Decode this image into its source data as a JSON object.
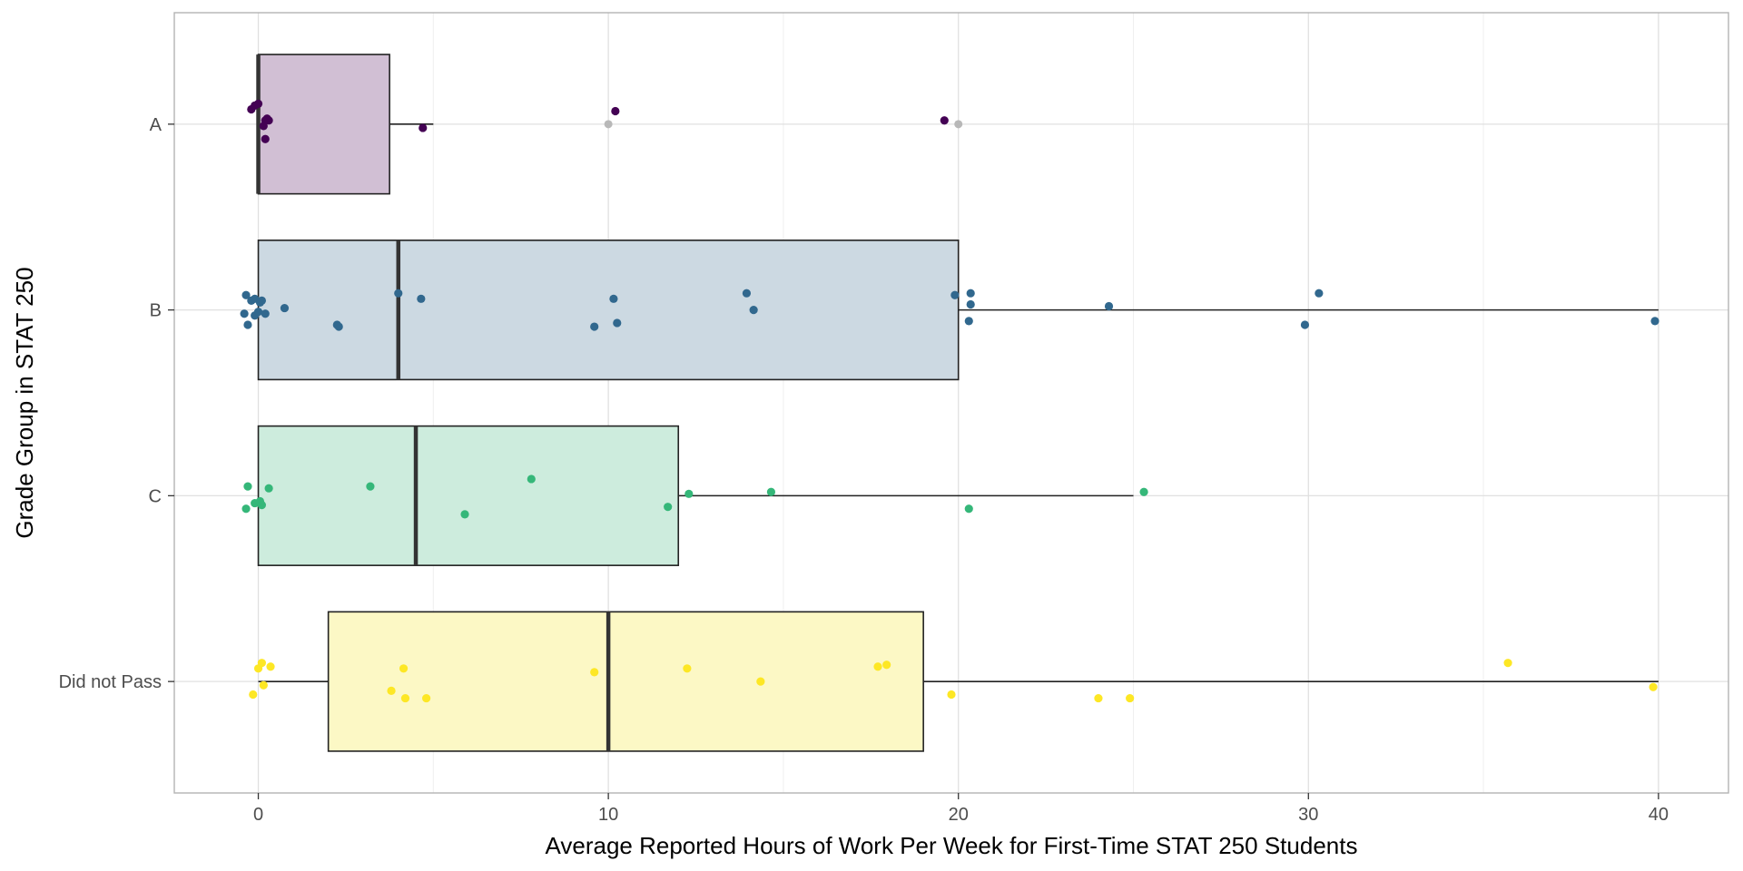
{
  "chart_data": {
    "type": "boxplot",
    "orientation": "horizontal",
    "xlabel": "Average Reported Hours of Work Per Week for First-Time STAT 250 Students",
    "ylabel": "Grade Group in STAT 250",
    "xlim": [
      -2.4,
      42
    ],
    "x_ticks": [
      0,
      10,
      20,
      30,
      40
    ],
    "x_tick_labels": [
      "0",
      "10",
      "20",
      "30",
      "40"
    ],
    "grid": true,
    "legend": "none",
    "categories": [
      "A",
      "B",
      "C",
      "Did not Pass"
    ],
    "series": [
      {
        "category": "A",
        "color": "#440154",
        "box_fill": "#d1bfd4",
        "box": {
          "whisker_low": 0,
          "q1": 0,
          "median": 0,
          "q3": 3.75,
          "whisker_high": 5
        },
        "outliers": [
          10,
          20
        ],
        "points": [
          [
            -0.2,
            0.08
          ],
          [
            0.0,
            0.11
          ],
          [
            -0.1,
            0.1
          ],
          [
            0.2,
            0.02
          ],
          [
            0.25,
            0.03
          ],
          [
            0.15,
            -0.01
          ],
          [
            0.3,
            0.02
          ],
          [
            0.2,
            -0.08
          ],
          [
            4.7,
            -0.02
          ],
          [
            10.2,
            0.07
          ],
          [
            19.6,
            0.02
          ]
        ]
      },
      {
        "category": "B",
        "color": "#31688e",
        "box_fill": "#ccd9e2",
        "box": {
          "whisker_low": 0,
          "q1": 0,
          "median": 4,
          "q3": 20,
          "whisker_high": 40
        },
        "outliers": [],
        "points": [
          [
            -0.35,
            0.08
          ],
          [
            -0.2,
            0.05
          ],
          [
            -0.1,
            0.06
          ],
          [
            0.05,
            0.04
          ],
          [
            0.1,
            0.05
          ],
          [
            -0.4,
            -0.02
          ],
          [
            -0.3,
            -0.08
          ],
          [
            -0.1,
            -0.03
          ],
          [
            0.0,
            -0.01
          ],
          [
            0.2,
            -0.02
          ],
          [
            0.75,
            0.01
          ],
          [
            2.25,
            -0.08
          ],
          [
            2.3,
            -0.09
          ],
          [
            4.0,
            0.09
          ],
          [
            4.65,
            0.06
          ],
          [
            9.6,
            -0.09
          ],
          [
            10.15,
            0.06
          ],
          [
            10.25,
            -0.07
          ],
          [
            13.95,
            0.09
          ],
          [
            14.15,
            0.0
          ],
          [
            19.9,
            0.08
          ],
          [
            20.35,
            0.09
          ],
          [
            20.35,
            0.03
          ],
          [
            20.3,
            -0.06
          ],
          [
            24.3,
            0.02
          ],
          [
            29.9,
            -0.08
          ],
          [
            30.3,
            0.09
          ],
          [
            39.9,
            -0.06
          ]
        ]
      },
      {
        "category": "C",
        "color": "#35b779",
        "box_fill": "#cdecdd",
        "box": {
          "whisker_low": 0,
          "q1": 0,
          "median": 4.5,
          "q3": 12,
          "whisker_high": 25
        },
        "outliers": [],
        "points": [
          [
            -0.3,
            0.05
          ],
          [
            -0.35,
            -0.07
          ],
          [
            -0.1,
            -0.04
          ],
          [
            0.05,
            -0.03
          ],
          [
            0.1,
            -0.05
          ],
          [
            0.3,
            0.04
          ],
          [
            3.2,
            0.05
          ],
          [
            5.9,
            -0.1
          ],
          [
            7.8,
            0.09
          ],
          [
            11.7,
            -0.06
          ],
          [
            12.3,
            0.01
          ],
          [
            14.65,
            0.02
          ],
          [
            20.3,
            -0.07
          ],
          [
            25.3,
            0.02
          ]
        ]
      },
      {
        "category": "Did not Pass",
        "color": "#fde725",
        "box_fill": "#fcf8c5",
        "box": {
          "whisker_low": 0,
          "q1": 2,
          "median": 10,
          "q3": 19,
          "whisker_high": 40
        },
        "outliers": [],
        "points": [
          [
            0.0,
            0.07
          ],
          [
            0.1,
            0.1
          ],
          [
            0.35,
            0.08
          ],
          [
            0.15,
            -0.02
          ],
          [
            -0.15,
            -0.07
          ],
          [
            3.8,
            -0.05
          ],
          [
            4.15,
            0.07
          ],
          [
            4.2,
            -0.09
          ],
          [
            4.8,
            -0.09
          ],
          [
            9.6,
            0.05
          ],
          [
            12.25,
            0.07
          ],
          [
            14.35,
            0.0
          ],
          [
            17.7,
            0.08
          ],
          [
            17.95,
            0.09
          ],
          [
            19.8,
            -0.07
          ],
          [
            24.0,
            -0.09
          ],
          [
            24.9,
            -0.09
          ],
          [
            35.7,
            0.1
          ],
          [
            39.85,
            -0.03
          ]
        ]
      }
    ]
  }
}
